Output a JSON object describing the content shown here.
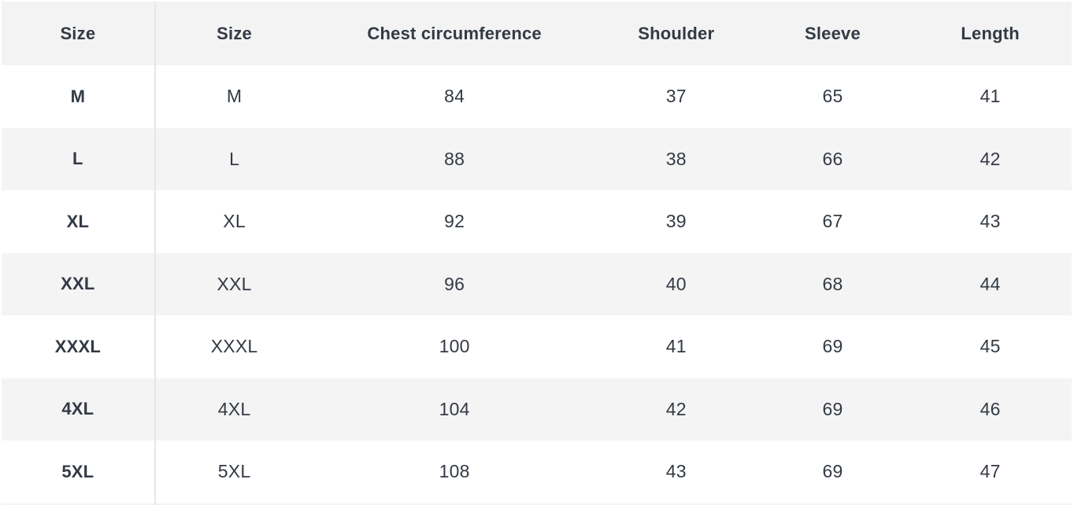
{
  "table": {
    "columns": [
      "Size",
      "Size",
      "Chest circumference",
      "Shoulder",
      "Sleeve",
      "Length"
    ],
    "rows": [
      [
        "M",
        "M",
        "84",
        "37",
        "65",
        "41"
      ],
      [
        "L",
        "L",
        "88",
        "38",
        "66",
        "42"
      ],
      [
        "XL",
        "XL",
        "92",
        "39",
        "67",
        "43"
      ],
      [
        "XXL",
        "XXL",
        "96",
        "40",
        "68",
        "44"
      ],
      [
        "XXXL",
        "XXXL",
        "100",
        "41",
        "69",
        "45"
      ],
      [
        "4XL",
        "4XL",
        "104",
        "42",
        "69",
        "46"
      ],
      [
        "5XL",
        "5XL",
        "108",
        "43",
        "69",
        "47"
      ]
    ]
  },
  "colors": {
    "header_bg": "#f3f3f4",
    "stripe_row_bg": "#f4f4f5",
    "plain_row_bg": "#ffffff",
    "text": "#333a44",
    "column_divider": "#e6e6e8"
  },
  "chart_data": {
    "type": "table",
    "title": "",
    "columns": [
      "Size",
      "Size",
      "Chest circumference",
      "Shoulder",
      "Sleeve",
      "Length"
    ],
    "rows": [
      [
        "M",
        "M",
        84,
        37,
        65,
        41
      ],
      [
        "L",
        "L",
        88,
        38,
        66,
        42
      ],
      [
        "XL",
        "XL",
        92,
        39,
        67,
        43
      ],
      [
        "XXL",
        "XXL",
        96,
        40,
        68,
        44
      ],
      [
        "XXXL",
        "XXXL",
        100,
        41,
        69,
        45
      ],
      [
        "4XL",
        "4XL",
        104,
        42,
        69,
        46
      ],
      [
        "5XL",
        "5XL",
        108,
        43,
        69,
        47
      ]
    ],
    "layout": {
      "header_background": "#f3f3f4",
      "zebra_striping": true,
      "first_column_bold": true,
      "divider_after_first_column": true
    }
  }
}
